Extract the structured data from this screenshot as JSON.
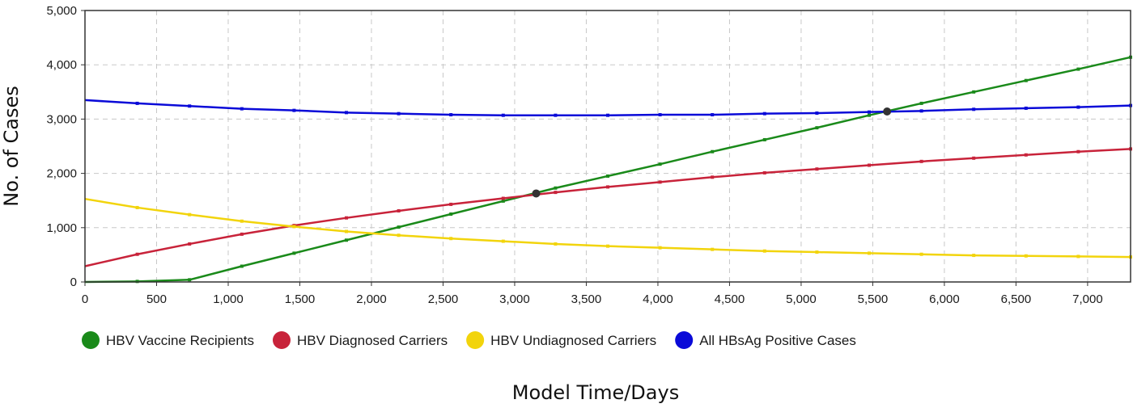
{
  "chart_data": {
    "type": "line",
    "title": "",
    "xlabel": "Model Time/Days",
    "ylabel": "No. of Cases",
    "xlim": [
      0,
      7300
    ],
    "ylim": [
      0,
      5000
    ],
    "x_ticks": [
      0,
      500,
      1000,
      1500,
      2000,
      2500,
      3000,
      3500,
      4000,
      4500,
      5000,
      5500,
      6000,
      6500,
      7000
    ],
    "x_tick_labels": [
      "0",
      "500",
      "1,000",
      "1,500",
      "2,000",
      "2,500",
      "3,000",
      "3,500",
      "4,000",
      "4,500",
      "5,000",
      "5,500",
      "6,000",
      "6,500",
      "7,000"
    ],
    "y_ticks": [
      0,
      1000,
      2000,
      3000,
      4000,
      5000
    ],
    "y_tick_labels": [
      "0",
      "1,000",
      "2,000",
      "3,000",
      "4,000",
      "5,000"
    ],
    "grid": true,
    "legend_position": "bottom",
    "series": [
      {
        "name": "HBV Vaccine Recipients",
        "color": "#1a8a1a",
        "x": [
          0,
          365,
          730,
          1095,
          1460,
          1825,
          2190,
          2555,
          2920,
          3285,
          3650,
          4015,
          4380,
          4745,
          5110,
          5475,
          5840,
          6205,
          6570,
          6935,
          7300
        ],
        "y": [
          0,
          10,
          40,
          290,
          530,
          770,
          1010,
          1250,
          1490,
          1730,
          1950,
          2170,
          2400,
          2620,
          2840,
          3070,
          3290,
          3500,
          3710,
          3920,
          4140
        ]
      },
      {
        "name": "HBV Diagnosed Carriers",
        "color": "#c8233a",
        "x": [
          0,
          365,
          730,
          1095,
          1460,
          1825,
          2190,
          2555,
          2920,
          3285,
          3650,
          4015,
          4380,
          4745,
          5110,
          5475,
          5840,
          6205,
          6570,
          6935,
          7300
        ],
        "y": [
          290,
          510,
          700,
          880,
          1040,
          1180,
          1310,
          1430,
          1540,
          1650,
          1750,
          1840,
          1930,
          2010,
          2080,
          2150,
          2220,
          2280,
          2340,
          2400,
          2450
        ]
      },
      {
        "name": "HBV Undiagnosed Carriers",
        "color": "#f2d40c",
        "x": [
          0,
          365,
          730,
          1095,
          1460,
          1825,
          2190,
          2555,
          2920,
          3285,
          3650,
          4015,
          4380,
          4745,
          5110,
          5475,
          5840,
          6205,
          6570,
          6935,
          7300
        ],
        "y": [
          1530,
          1370,
          1240,
          1120,
          1020,
          930,
          860,
          800,
          750,
          700,
          660,
          630,
          600,
          570,
          550,
          530,
          510,
          490,
          480,
          470,
          460
        ]
      },
      {
        "name": "All HBsAg Positive Cases",
        "color": "#0a0ad8",
        "x": [
          0,
          365,
          730,
          1095,
          1460,
          1825,
          2190,
          2555,
          2920,
          3285,
          3650,
          4015,
          4380,
          4745,
          5110,
          5475,
          5840,
          6205,
          6570,
          6935,
          7300
        ],
        "y": [
          3350,
          3290,
          3240,
          3190,
          3160,
          3120,
          3100,
          3080,
          3070,
          3070,
          3070,
          3080,
          3080,
          3100,
          3110,
          3130,
          3150,
          3180,
          3200,
          3220,
          3250
        ]
      }
    ],
    "markers": [
      {
        "x": 3150,
        "y": 1630,
        "color": "#333333"
      },
      {
        "x": 5600,
        "y": 3140,
        "color": "#333333"
      }
    ]
  }
}
